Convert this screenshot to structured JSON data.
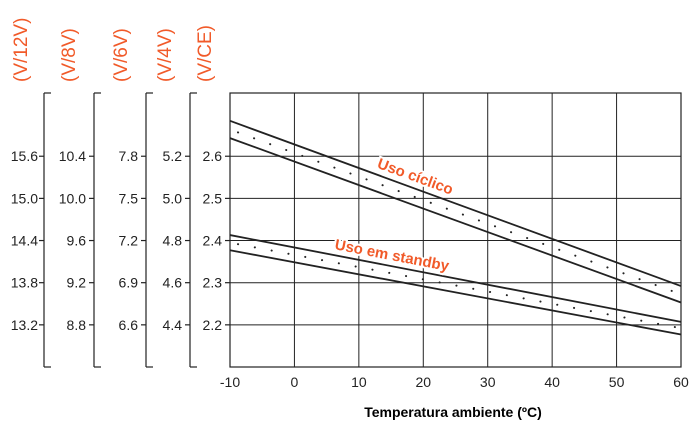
{
  "colors": {
    "accent": "#f15a29",
    "line": "#222222",
    "grid": "#222222",
    "text": "#222222",
    "background": "#ffffff"
  },
  "chart_data": {
    "type": "line",
    "xlabel": "Temperatura ambiente (ºC)",
    "x_ticks": [
      -10,
      0,
      10,
      20,
      30,
      40,
      50,
      60
    ],
    "xlim": [
      -10,
      60
    ],
    "ylim": [
      2.1,
      2.75
    ],
    "y_axes": [
      {
        "unit": "(V/12V)",
        "ticks": [
          "15.6",
          "15.0",
          "14.4",
          "13.8",
          "13.2"
        ]
      },
      {
        "unit": "(V/8V)",
        "ticks": [
          "10.4",
          "10.0",
          "9.6",
          "9.2",
          "8.8"
        ]
      },
      {
        "unit": "(V/6V)",
        "ticks": [
          "7.8",
          "7.5",
          "7.2",
          "6.9",
          "6.6"
        ]
      },
      {
        "unit": "(V/4V)",
        "ticks": [
          "5.2",
          "5.0",
          "4.8",
          "4.6",
          "4.4"
        ]
      },
      {
        "unit": "(V/CE)",
        "ticks": [
          "2.6",
          "2.5",
          "2.4",
          "2.3",
          "2.2"
        ]
      }
    ],
    "y_tick_values": [
      2.6,
      2.5,
      2.4,
      2.3,
      2.2
    ],
    "grid": true,
    "series": [
      {
        "name": "Uso cíclico",
        "x": [
          -10,
          60
        ],
        "upper": [
          2.684,
          2.292
        ],
        "lower": [
          2.643,
          2.253
        ]
      },
      {
        "name": "Uso em standby",
        "x": [
          -10,
          60
        ],
        "upper": [
          2.413,
          2.207
        ],
        "lower": [
          2.377,
          2.177
        ]
      }
    ]
  }
}
